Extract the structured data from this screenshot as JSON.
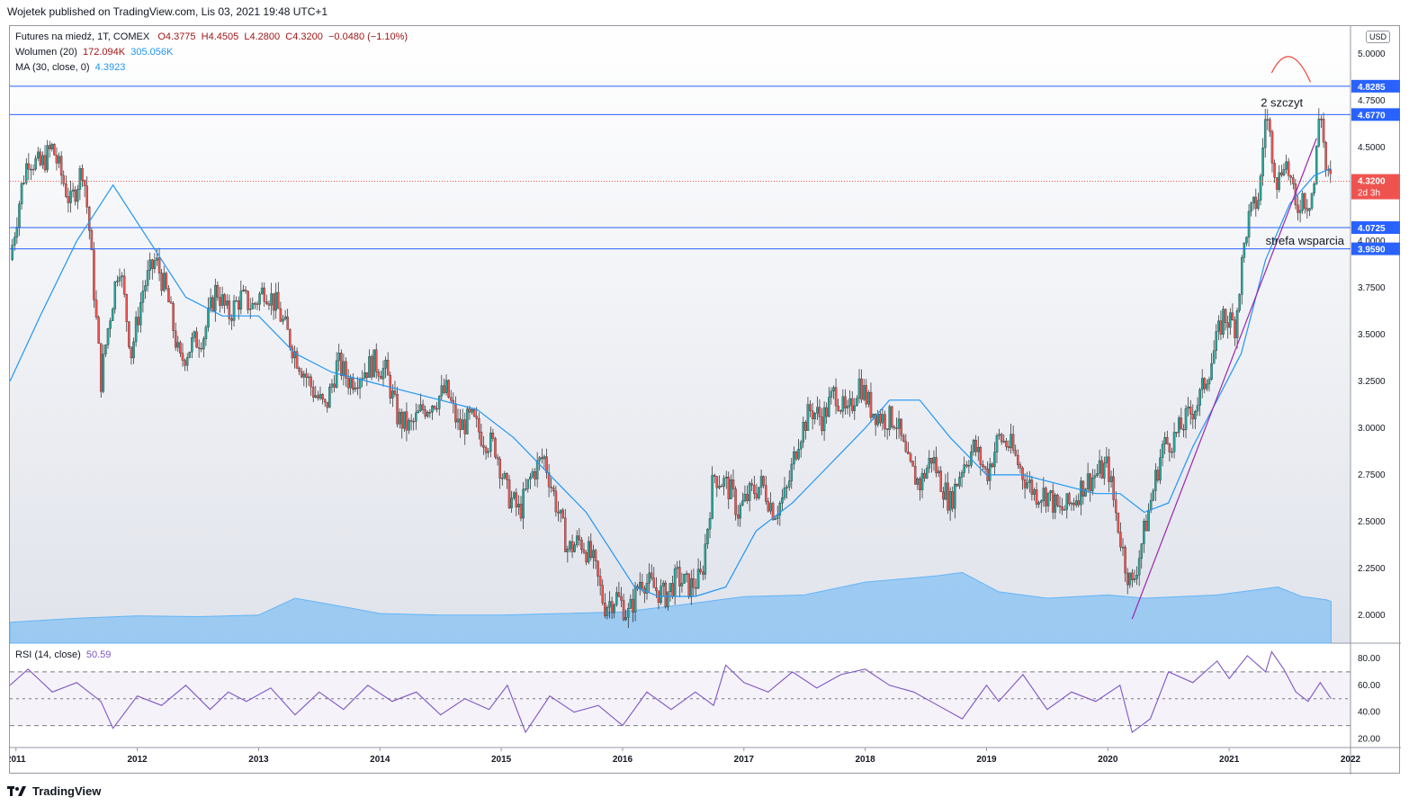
{
  "header": {
    "published": "Wojetek published on TradingView.com, Lis 03, 2021 19:48 UTC+1"
  },
  "legend": {
    "symbol": "Futures na miedź, 1T, COMEX",
    "ohlc_o": "O4.3775",
    "ohlc_h": "H4.4505",
    "ohlc_l": "L4.2800",
    "ohlc_c": "C4.3200",
    "ohlc_chg": "−0.0480 (−1.10%)",
    "volume_label": "Wolumen (20)",
    "volume_v1": "172.094K",
    "volume_v2": "305.056K",
    "ma_label": "MA (30, close, 0)",
    "ma_value": "4.3923",
    "rsi_label": "RSI (14, close)",
    "rsi_value": "50.59"
  },
  "currency": "USD",
  "annotations": {
    "peak": "2 szczyt",
    "support": "strefa wsparcia"
  },
  "footer": {
    "brand": "TradingView"
  },
  "colors": {
    "up": "#26a69a",
    "down": "#ef5350",
    "hline": "#2962ff",
    "ma": "#2196f3",
    "rsi": "#7e57c2",
    "volume": "#64b5f6",
    "trend": "#9c27b0",
    "arc": "#f44336"
  },
  "chart_data": [
    {
      "type": "candlestick",
      "xlim": [
        2010.95,
        2022.0
      ],
      "ylim": [
        1.85,
        5.15
      ],
      "x_ticks": [
        "2011",
        "2012",
        "2013",
        "2014",
        "2015",
        "2016",
        "2017",
        "2018",
        "2019",
        "2020",
        "2021",
        "2022"
      ],
      "y_ticks": [
        "2.0000",
        "2.2500",
        "2.5000",
        "2.7500",
        "3.0000",
        "3.2500",
        "3.5000",
        "3.7500",
        "4.0000",
        "4.2500",
        "4.5000",
        "4.7500",
        "5.0000"
      ],
      "close_series": {
        "x": [
          2010.95,
          2011.05,
          2011.1,
          2011.2,
          2011.3,
          2011.45,
          2011.55,
          2011.6,
          2011.7,
          2011.75,
          2011.85,
          2011.95,
          2012.05,
          2012.15,
          2012.25,
          2012.35,
          2012.45,
          2012.55,
          2012.65,
          2012.75,
          2012.85,
          2012.95,
          2013.05,
          2013.15,
          2013.3,
          2013.45,
          2013.55,
          2013.65,
          2013.75,
          2013.85,
          2013.95,
          2014.05,
          2014.15,
          2014.25,
          2014.35,
          2014.45,
          2014.55,
          2014.65,
          2014.75,
          2014.85,
          2014.95,
          2015.05,
          2015.15,
          2015.25,
          2015.35,
          2015.45,
          2015.55,
          2015.65,
          2015.75,
          2015.85,
          2015.95,
          2016.05,
          2016.15,
          2016.25,
          2016.35,
          2016.45,
          2016.55,
          2016.65,
          2016.75,
          2016.85,
          2016.9,
          2016.95,
          2017.05,
          2017.15,
          2017.25,
          2017.35,
          2017.45,
          2017.55,
          2017.65,
          2017.75,
          2017.85,
          2017.95,
          2018.05,
          2018.15,
          2018.25,
          2018.35,
          2018.45,
          2018.55,
          2018.6,
          2018.7,
          2018.8,
          2018.9,
          2019.0,
          2019.1,
          2019.2,
          2019.3,
          2019.4,
          2019.5,
          2019.6,
          2019.7,
          2019.8,
          2019.9,
          2020.0,
          2020.05,
          2020.15,
          2020.2,
          2020.25,
          2020.35,
          2020.45,
          2020.55,
          2020.65,
          2020.75,
          2020.85,
          2020.95,
          2021.05,
          2021.1,
          2021.15,
          2021.25,
          2021.3,
          2021.35,
          2021.4,
          2021.45,
          2021.5,
          2021.55,
          2021.6,
          2021.65,
          2021.7,
          2021.75,
          2021.8,
          2021.84
        ],
        "close": [
          3.9,
          4.3,
          4.45,
          4.4,
          4.5,
          4.2,
          4.4,
          4.1,
          3.25,
          3.5,
          3.9,
          3.4,
          3.75,
          3.9,
          3.7,
          3.35,
          3.45,
          3.5,
          3.75,
          3.6,
          3.7,
          3.65,
          3.75,
          3.65,
          3.4,
          3.2,
          3.1,
          3.35,
          3.25,
          3.3,
          3.35,
          3.3,
          3.05,
          3.0,
          3.1,
          3.15,
          3.2,
          3.0,
          3.05,
          2.95,
          2.9,
          2.65,
          2.55,
          2.75,
          2.85,
          2.6,
          2.35,
          2.4,
          2.3,
          2.05,
          2.1,
          2.0,
          2.2,
          2.15,
          2.1,
          2.2,
          2.15,
          2.2,
          2.75,
          2.7,
          2.65,
          2.55,
          2.65,
          2.7,
          2.55,
          2.65,
          2.95,
          3.1,
          3.05,
          3.2,
          3.05,
          3.25,
          3.1,
          3.05,
          3.05,
          2.8,
          2.7,
          2.85,
          2.75,
          2.6,
          2.8,
          2.9,
          2.75,
          2.95,
          2.9,
          2.75,
          2.65,
          2.65,
          2.55,
          2.6,
          2.7,
          2.75,
          2.8,
          2.6,
          2.25,
          2.15,
          2.3,
          2.6,
          2.9,
          2.95,
          3.05,
          3.15,
          3.35,
          3.6,
          3.55,
          3.85,
          4.1,
          4.25,
          4.7,
          4.5,
          4.3,
          4.45,
          4.35,
          4.15,
          4.25,
          4.2,
          4.3,
          4.75,
          4.35,
          4.32
        ]
      },
      "ma30": {
        "x": [
          2010.95,
          2011.2,
          2011.5,
          2011.8,
          2012.1,
          2012.4,
          2012.7,
          2013.0,
          2013.3,
          2013.6,
          2013.9,
          2014.2,
          2014.5,
          2014.8,
          2015.1,
          2015.4,
          2015.7,
          2015.9,
          2016.1,
          2016.3,
          2016.6,
          2016.85,
          2017.1,
          2017.4,
          2017.7,
          2018.0,
          2018.2,
          2018.45,
          2018.7,
          2019.0,
          2019.3,
          2019.6,
          2019.9,
          2020.1,
          2020.3,
          2020.5,
          2020.7,
          2020.9,
          2021.1,
          2021.3,
          2021.5,
          2021.7,
          2021.84
        ],
        "y": [
          3.25,
          3.6,
          4.0,
          4.3,
          4.0,
          3.7,
          3.6,
          3.6,
          3.4,
          3.3,
          3.25,
          3.2,
          3.15,
          3.1,
          2.95,
          2.75,
          2.55,
          2.35,
          2.15,
          2.1,
          2.1,
          2.15,
          2.45,
          2.6,
          2.8,
          3.0,
          3.15,
          3.15,
          2.95,
          2.75,
          2.75,
          2.7,
          2.65,
          2.65,
          2.55,
          2.6,
          2.9,
          3.15,
          3.4,
          3.9,
          4.2,
          4.35,
          4.39
        ]
      },
      "volume_ma_profile": {
        "x": [
          2010.95,
          2011.5,
          2012.0,
          2012.5,
          2013.0,
          2013.3,
          2013.6,
          2014.0,
          2014.5,
          2015.0,
          2015.5,
          2016.0,
          2016.5,
          2017.0,
          2017.5,
          2018.0,
          2018.3,
          2018.6,
          2018.8,
          2019.1,
          2019.5,
          2020.0,
          2020.3,
          2020.6,
          2020.9,
          2021.2,
          2021.4,
          2021.6,
          2021.8,
          2021.84
        ],
        "volume_k": [
          130,
          155,
          170,
          165,
          175,
          280,
          240,
          185,
          175,
          175,
          185,
          195,
          240,
          290,
          300,
          380,
          400,
          420,
          440,
          320,
          280,
          300,
          280,
          290,
          300,
          330,
          350,
          290,
          270,
          260
        ]
      },
      "hlines": [
        4.8285,
        4.677,
        4.0725,
        3.959
      ],
      "last_price": 4.32,
      "last_price_label": "4.3200",
      "price_badges": [
        {
          "label": "4.8285",
          "value": 4.8285
        },
        {
          "label": "4.6770",
          "value": 4.677
        },
        {
          "label": "4.0725",
          "value": 4.0725
        },
        {
          "label": "3.9590",
          "value": 3.959
        }
      ],
      "countdown": "2d 3h",
      "trendline": {
        "x": [
          2020.2,
          2021.72
        ],
        "y": [
          1.98,
          4.55
        ]
      },
      "peak_arc": {
        "x": [
          2021.35,
          2021.5,
          2021.67
        ],
        "y": [
          4.9,
          5.0,
          4.85
        ]
      }
    },
    {
      "type": "line",
      "name": "RSI (14, close)",
      "ylim": [
        15,
        90
      ],
      "y_ticks": [
        "20.00",
        "40.00",
        "60.00",
        "80.00"
      ],
      "bands": [
        30,
        50,
        70
      ],
      "x": [
        2010.95,
        2011.1,
        2011.3,
        2011.5,
        2011.7,
        2011.8,
        2012.0,
        2012.2,
        2012.4,
        2012.6,
        2012.75,
        2012.9,
        2013.1,
        2013.3,
        2013.5,
        2013.7,
        2013.9,
        2014.1,
        2014.3,
        2014.5,
        2014.7,
        2014.9,
        2015.05,
        2015.2,
        2015.4,
        2015.6,
        2015.8,
        2016.0,
        2016.2,
        2016.4,
        2016.6,
        2016.75,
        2016.85,
        2017.0,
        2017.2,
        2017.4,
        2017.6,
        2017.8,
        2018.0,
        2018.2,
        2018.4,
        2018.6,
        2018.8,
        2019.0,
        2019.1,
        2019.3,
        2019.5,
        2019.7,
        2019.9,
        2020.1,
        2020.2,
        2020.35,
        2020.5,
        2020.7,
        2020.9,
        2021.0,
        2021.15,
        2021.3,
        2021.35,
        2021.45,
        2021.55,
        2021.65,
        2021.75,
        2021.84
      ],
      "y": [
        60,
        72,
        55,
        62,
        48,
        28,
        52,
        45,
        60,
        42,
        55,
        48,
        58,
        38,
        55,
        42,
        60,
        48,
        55,
        38,
        50,
        42,
        60,
        25,
        52,
        40,
        45,
        30,
        55,
        42,
        55,
        45,
        75,
        62,
        55,
        70,
        58,
        68,
        72,
        60,
        55,
        45,
        35,
        60,
        48,
        68,
        42,
        55,
        48,
        60,
        25,
        35,
        70,
        62,
        78,
        65,
        82,
        70,
        85,
        72,
        55,
        48,
        62,
        50
      ]
    }
  ]
}
